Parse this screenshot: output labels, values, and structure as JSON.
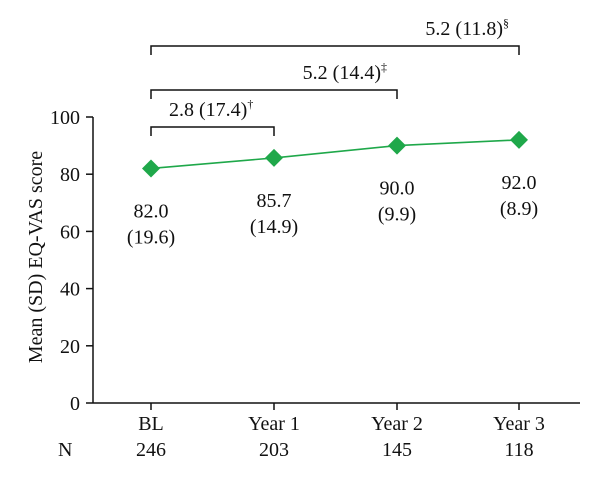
{
  "chart_data": {
    "type": "line",
    "ylabel": "Mean (SD) EQ-VAS score",
    "ylim": [
      0,
      100
    ],
    "yticks": [
      0,
      20,
      40,
      60,
      80,
      100
    ],
    "categories": [
      "BL",
      "Year 1",
      "Year 2",
      "Year 3"
    ],
    "n_label": "N",
    "n_values": [
      "246",
      "203",
      "145",
      "118"
    ],
    "series": [
      {
        "values": [
          82.0,
          85.7,
          90.0,
          92.0
        ],
        "mean_labels": [
          "82.0",
          "85.7",
          "90.0",
          "92.0"
        ],
        "sd_labels": [
          "(19.6)",
          "(14.9)",
          "(9.9)",
          "(8.9)"
        ],
        "color": "#1fa84a"
      }
    ],
    "comparisons": [
      {
        "from": 0,
        "to": 1,
        "label": "2.8 (17.4)",
        "mark": "†"
      },
      {
        "from": 0,
        "to": 2,
        "label": "5.2 (14.4)",
        "mark": "‡"
      },
      {
        "from": 0,
        "to": 3,
        "label": "5.2 (11.8)",
        "mark": "§"
      }
    ],
    "grid": false,
    "marker": "diamond"
  }
}
